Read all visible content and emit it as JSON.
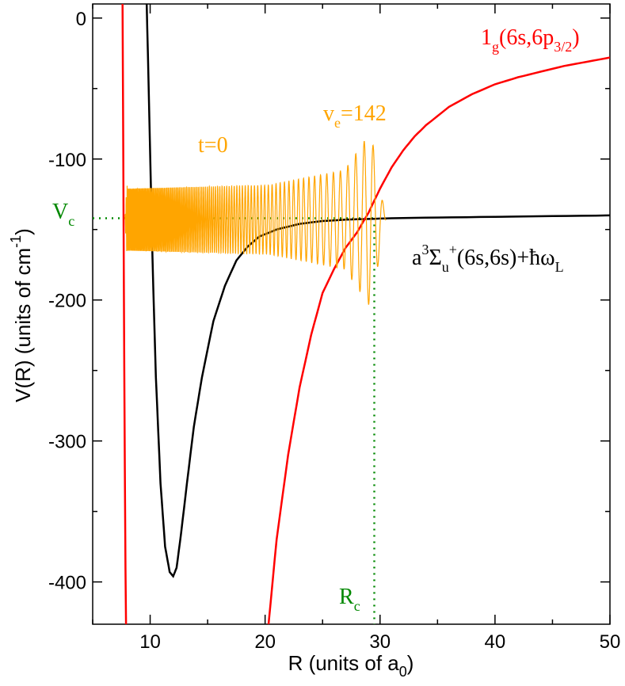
{
  "chart_data": {
    "type": "line",
    "title": "",
    "xlabel": {
      "main": "R (units of a",
      "sub": "0",
      "end": ")"
    },
    "ylabel": {
      "main": "V(R) (units of cm",
      "sup": "-1",
      "end": ")"
    },
    "xlim": [
      5,
      50
    ],
    "ylim": [
      -430,
      10
    ],
    "x_ticks": [
      10,
      20,
      30,
      40,
      50
    ],
    "y_ticks": [
      0,
      -100,
      -200,
      -300,
      -400
    ],
    "grid": false,
    "series": [
      {
        "name": "a3Σu+(6s,6s)+ħωL",
        "color": "#000000",
        "x": [
          9.7,
          9.9,
          10.2,
          10.5,
          10.9,
          11.3,
          11.7,
          12.0,
          12.3,
          12.7,
          13.2,
          13.8,
          14.5,
          15.5,
          16.5,
          17.5,
          18.5,
          19.5,
          21,
          23,
          25,
          27,
          29,
          31,
          35,
          40,
          45,
          50
        ],
        "y": [
          10,
          -60,
          -170,
          -255,
          -330,
          -375,
          -393,
          -396,
          -390,
          -365,
          -330,
          -290,
          -255,
          -215,
          -190,
          -172,
          -162,
          -155,
          -150,
          -146,
          -144,
          -143,
          -142.5,
          -142,
          -141.5,
          -141,
          -140.5,
          -140
        ]
      },
      {
        "name": "1g(6s,6p3/2) inner wall",
        "color": "#ff0000",
        "x": [
          7.6,
          7.65,
          7.7,
          7.75,
          7.8,
          7.85,
          7.9
        ],
        "y": [
          10,
          -80,
          -170,
          -250,
          -320,
          -390,
          -430
        ]
      },
      {
        "name": "1g(6s,6p3/2)",
        "color": "#ff0000",
        "x": [
          20.3,
          21,
          22,
          23,
          24,
          25,
          26,
          27,
          28,
          29,
          30,
          31,
          32,
          33,
          34,
          36,
          38,
          40,
          42,
          44,
          46,
          48,
          50
        ],
        "y": [
          -430,
          -370,
          -310,
          -262,
          -225,
          -195,
          -178,
          -163,
          -152,
          -138,
          -121,
          -106,
          -94,
          -84,
          -76,
          -63,
          -54,
          -47,
          -42,
          -38,
          -34,
          -31,
          -28
        ]
      },
      {
        "name": "wavepacket v_e=142 (t=0)",
        "color": "#ffa500",
        "x_start": 7.8,
        "x_end": 30.5,
        "baseline": -143
      },
      {
        "name": "V_c guide",
        "color": "#008800",
        "x": [
          5,
          29.5
        ],
        "y": [
          -142,
          -142
        ]
      },
      {
        "name": "R_c guide",
        "color": "#008800",
        "x": [
          29.5,
          29.5
        ],
        "y": [
          -142,
          -430
        ]
      }
    ],
    "annotations": {
      "red_label": {
        "main": "1",
        "sub": "g",
        "mid": "(6s,6p",
        "sub2": "3/2",
        "end": ")"
      },
      "ve_label": {
        "main": "v",
        "sub": "e",
        "end": "=142"
      },
      "t_label": "t=0",
      "vc_label": {
        "main": "V",
        "sub": "c"
      },
      "rc_label": {
        "main": "R",
        "sub": "c"
      },
      "black_label": {
        "a": "a",
        "sup1": "3",
        "sigma": "Σ",
        "sub1": "u",
        "sup2": "+",
        "mid": "(6s,6s)+",
        "hbar": "ħω",
        "sub2": "L"
      }
    }
  }
}
